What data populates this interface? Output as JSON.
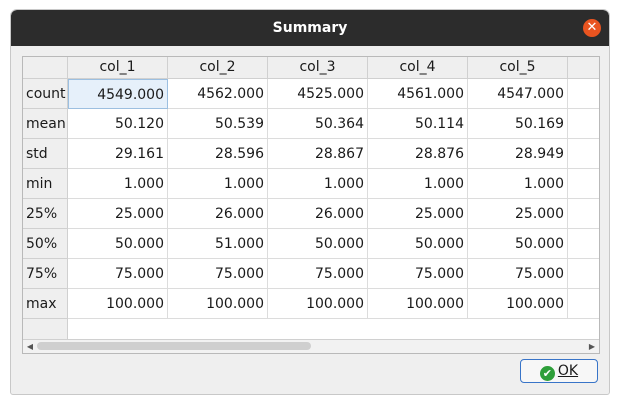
{
  "window": {
    "title": "Summary",
    "close_icon": "close-icon",
    "accent_color": "#e95420"
  },
  "table": {
    "columns": [
      "col_1",
      "col_2",
      "col_3",
      "col_4",
      "col_5"
    ],
    "rows": [
      {
        "label": "count",
        "values": [
          "4549.000",
          "4562.000",
          "4525.000",
          "4561.000",
          "4547.000"
        ]
      },
      {
        "label": "mean",
        "values": [
          "50.120",
          "50.539",
          "50.364",
          "50.114",
          "50.169"
        ]
      },
      {
        "label": "std",
        "values": [
          "29.161",
          "28.596",
          "28.867",
          "28.876",
          "28.949"
        ]
      },
      {
        "label": "min",
        "values": [
          "1.000",
          "1.000",
          "1.000",
          "1.000",
          "1.000"
        ]
      },
      {
        "label": "25%",
        "values": [
          "25.000",
          "26.000",
          "26.000",
          "25.000",
          "25.000"
        ]
      },
      {
        "label": "50%",
        "values": [
          "50.000",
          "51.000",
          "50.000",
          "50.000",
          "50.000"
        ]
      },
      {
        "label": "75%",
        "values": [
          "75.000",
          "75.000",
          "75.000",
          "75.000",
          "75.000"
        ]
      },
      {
        "label": "max",
        "values": [
          "100.000",
          "100.000",
          "100.000",
          "100.000",
          "100.000"
        ]
      }
    ],
    "selected_cell": {
      "row": 0,
      "col": 0
    }
  },
  "scrollbar": {
    "left_icon": "arrow-left-icon",
    "right_icon": "arrow-right-icon"
  },
  "buttons": {
    "ok_label": "OK",
    "ok_icon": "check-circle-icon"
  }
}
